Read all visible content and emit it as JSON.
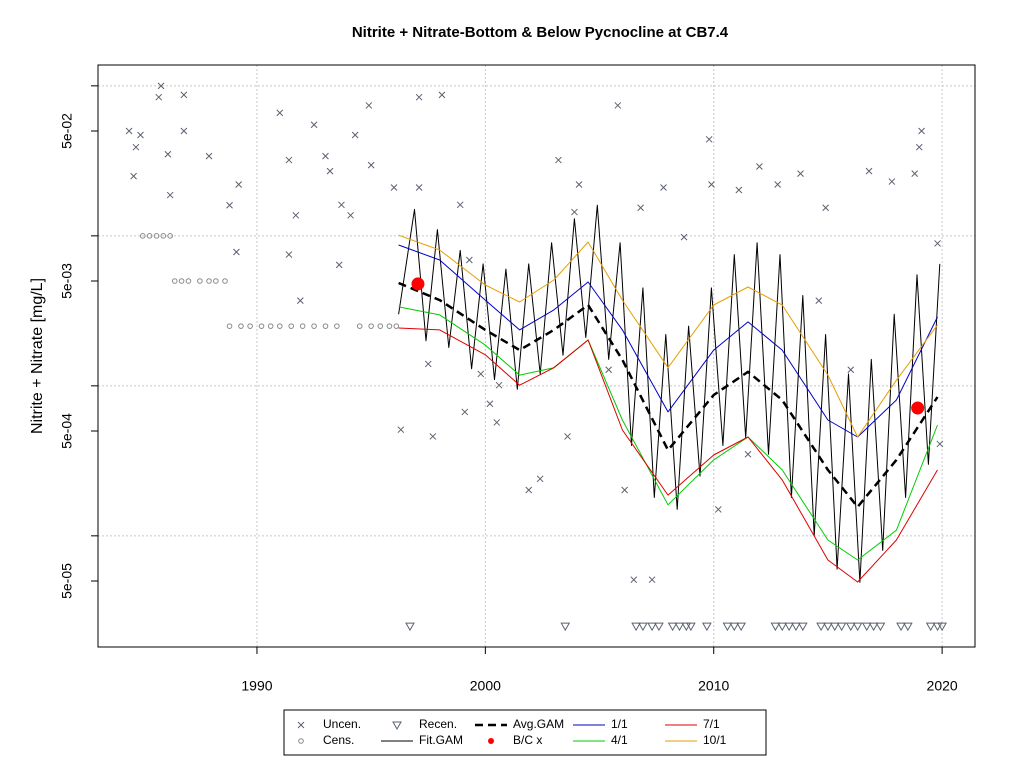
{
  "chart_data": {
    "type": "line",
    "title": "Nitrite + Nitrate-Bottom & Below Pycnocline at CB7.4",
    "y_label": "Nitrite + Nitrate [mg/L]",
    "xlim": [
      1983.04,
      2021.44
    ],
    "xticks": [
      1990,
      2000,
      2010,
      2020
    ],
    "ylim": [
      1.815e-05,
      0.1377
    ],
    "y_log": true,
    "yticks": [
      {
        "value": 0.05,
        "label": "5e-02"
      },
      {
        "value": 0.005,
        "label": "5e-03"
      },
      {
        "value": 0.0005,
        "label": "5e-04"
      },
      {
        "value": 5e-05,
        "label": "5e-05"
      }
    ],
    "ygrid": [
      0.1,
      0.01,
      0.001,
      0.0001
    ],
    "grid": true,
    "legend": "bottom",
    "series": [
      {
        "name": "Uncen.",
        "kind": "points",
        "marker": "x",
        "color": "#5a6270",
        "x": [
          1984.4,
          1984.7,
          1984.9,
          1984.6,
          1985.8,
          1985.7,
          1986.8,
          1986.1,
          1986.2,
          1986.8,
          1987.9,
          1988.8,
          1989.2,
          1989.1,
          1991.0,
          1991.4,
          1991.7,
          1992.5,
          1993.0,
          1993.2,
          1993.7,
          1994.3,
          1994.1,
          1994.9,
          1995.0,
          1993.6,
          1991.4,
          1991.9,
          1996.0,
          1997.1,
          1998.1,
          1997.1,
          1997.5,
          1996.3,
          1997.7,
          1998.9,
          1999.3,
          1999.8,
          1999.1,
          2000.2,
          2000.6,
          2000.5,
          2001.9,
          2002.4,
          2003.2,
          2003.6,
          2004.1,
          2003.9,
          2005.8,
          2005.4,
          2006.1,
          2006.5,
          2007.3,
          2006.8,
          2007.8,
          2008.7,
          2009.8,
          2009.9,
          2010.2,
          2011.1,
          2011.5,
          2012.0,
          2012.8,
          2013.8,
          2014.9,
          2014.6,
          2016.0,
          2016.8,
          2017.8,
          2018.8,
          2019.1,
          2019.0,
          2019.8,
          2019.9
        ],
        "values": [
          0.05,
          0.039,
          0.047,
          0.025,
          0.1,
          0.084,
          0.087,
          0.035,
          0.0187,
          0.05,
          0.034,
          0.016,
          0.022,
          0.0078,
          0.066,
          0.032,
          0.0137,
          0.055,
          0.034,
          0.027,
          0.0161,
          0.047,
          0.0137,
          0.074,
          0.0296,
          0.0064,
          0.0075,
          0.0037,
          0.021,
          0.084,
          0.087,
          0.021,
          0.0014,
          0.00051,
          0.00046,
          0.0161,
          0.0069,
          0.0012,
          0.00067,
          0.00076,
          0.00101,
          0.00057,
          0.000202,
          0.00024,
          0.032,
          0.00046,
          0.022,
          0.0144,
          0.074,
          0.00128,
          0.000202,
          5.1e-05,
          5.1e-05,
          0.0154,
          0.021,
          0.0098,
          0.044,
          0.022,
          0.00015,
          0.0202,
          0.00035,
          0.029,
          0.022,
          0.026,
          0.0154,
          0.0037,
          0.00128,
          0.027,
          0.023,
          0.026,
          0.05,
          0.039,
          0.0089,
          0.00041
        ]
      },
      {
        "name": "Cens.",
        "kind": "points",
        "marker": "o",
        "color": "#8a8a8a",
        "x": [
          1985.0,
          1985.3,
          1985.6,
          1985.9,
          1986.2,
          1986.4,
          1986.7,
          1987.0,
          1987.5,
          1987.9,
          1988.2,
          1988.6,
          1988.8,
          1989.3,
          1989.7,
          1990.2,
          1990.6,
          1991.0,
          1991.5,
          1992.0,
          1992.5,
          1993.0,
          1993.5,
          1994.5,
          1995.0,
          1995.4,
          1995.8,
          1996.1
        ],
        "values": [
          0.01,
          0.01,
          0.01,
          0.01,
          0.01,
          0.005,
          0.005,
          0.005,
          0.005,
          0.005,
          0.005,
          0.005,
          0.0025,
          0.0025,
          0.0025,
          0.0025,
          0.0025,
          0.0025,
          0.0025,
          0.0025,
          0.0025,
          0.0025,
          0.0025,
          0.0025,
          0.0025,
          0.0025,
          0.0025,
          0.0025
        ]
      },
      {
        "name": "Recen.",
        "kind": "points",
        "marker": "v",
        "color": "#5a6270",
        "x": [
          1996.7,
          2003.5,
          2006.6,
          2006.9,
          2007.3,
          2007.6,
          2008.2,
          2008.5,
          2008.8,
          2009.0,
          2009.7,
          2010.6,
          2010.9,
          2011.2,
          2012.7,
          2013.0,
          2013.3,
          2013.6,
          2013.9,
          2014.7,
          2015.0,
          2015.3,
          2015.6,
          2016.0,
          2016.3,
          2016.7,
          2017.0,
          2017.3,
          2018.2,
          2018.5,
          2019.5,
          2019.8,
          2020.0
        ],
        "values": [
          2.5e-05,
          2.5e-05,
          2.5e-05,
          2.5e-05,
          2.5e-05,
          2.5e-05,
          2.5e-05,
          2.5e-05,
          2.5e-05,
          2.5e-05,
          2.5e-05,
          2.5e-05,
          2.5e-05,
          2.5e-05,
          2.5e-05,
          2.5e-05,
          2.5e-05,
          2.5e-05,
          2.5e-05,
          2.5e-05,
          2.5e-05,
          2.5e-05,
          2.5e-05,
          2.5e-05,
          2.5e-05,
          2.5e-05,
          2.5e-05,
          2.5e-05,
          2.5e-05,
          2.5e-05,
          2.5e-05,
          2.5e-05,
          2.5e-05
        ]
      },
      {
        "name": "Fit.GAM",
        "kind": "line",
        "color": "#000000",
        "width": 1,
        "x": [
          1996.2,
          1996.9,
          1997.4,
          1997.9,
          1998.4,
          1998.9,
          1999.4,
          1999.9,
          2000.4,
          2000.9,
          2001.4,
          2001.9,
          2002.4,
          2002.9,
          2003.4,
          2003.9,
          2004.4,
          2004.9,
          2005.4,
          2005.9,
          2006.4,
          2006.9,
          2007.4,
          2007.9,
          2008.4,
          2008.9,
          2009.4,
          2009.9,
          2010.4,
          2010.9,
          2011.4,
          2011.9,
          2012.4,
          2012.9,
          2013.4,
          2013.9,
          2014.4,
          2014.9,
          2015.4,
          2015.9,
          2016.4,
          2016.9,
          2017.4,
          2017.9,
          2018.4,
          2018.9,
          2019.4,
          2019.9
        ],
        "values": [
          0.003,
          0.015,
          0.002,
          0.011,
          0.0018,
          0.008,
          0.0013,
          0.0065,
          0.0011,
          0.006,
          0.00095,
          0.0065,
          0.0012,
          0.009,
          0.0016,
          0.013,
          0.0021,
          0.016,
          0.0015,
          0.009,
          0.0004,
          0.0045,
          0.00018,
          0.0022,
          0.00015,
          0.0025,
          0.00025,
          0.0045,
          0.0004,
          0.0075,
          0.00045,
          0.009,
          0.00035,
          0.0075,
          0.00018,
          0.004,
          0.0001,
          0.0022,
          6e-05,
          0.0012,
          4.9e-05,
          0.0015,
          8e-05,
          0.003,
          0.00018,
          0.0055,
          0.0003,
          0.0065
        ]
      },
      {
        "name": "Avg.GAM",
        "kind": "line",
        "dashed": true,
        "color": "#000000",
        "width": 2.5,
        "x": [
          1996.2,
          1998,
          2000,
          2001.5,
          2003,
          2004.5,
          2006,
          2008,
          2010,
          2011.5,
          2013,
          2015,
          2016.3,
          2018,
          2019.8
        ],
        "values": [
          0.00485,
          0.00373,
          0.00236,
          0.00173,
          0.00236,
          0.00346,
          0.00149,
          0.000373,
          0.000869,
          0.00124,
          0.000805,
          0.000275,
          0.000156,
          0.000321,
          0.000843
        ]
      },
      {
        "name": "B/C x",
        "kind": "points",
        "marker": "dot",
        "color": "#ff0000",
        "x": [
          1997.05,
          2018.93
        ],
        "values": [
          0.00478,
          0.000711
        ]
      },
      {
        "name": "1/1",
        "kind": "line",
        "color": "#0000c8",
        "width": 1,
        "x": [
          1996.2,
          1998,
          2000,
          2001.5,
          2003,
          2004.5,
          2006,
          2008,
          2010,
          2011.5,
          2013,
          2015,
          2016.3,
          2018,
          2019.8
        ],
        "values": [
          0.00869,
          0.0069,
          0.00373,
          0.00236,
          0.00321,
          0.00492,
          0.00236,
          0.00067,
          0.00173,
          0.00267,
          0.00173,
          0.000592,
          0.000456,
          0.000805,
          0.00288
        ]
      },
      {
        "name": "4/1",
        "kind": "line",
        "color": "#00cc00",
        "width": 1,
        "x": [
          1996.2,
          1998,
          2000,
          2001.5,
          2003,
          2004.5,
          2006,
          2008,
          2010,
          2011.5,
          2013,
          2015,
          2016.3,
          2018,
          2019.8
        ],
        "values": [
          0.00336,
          0.00297,
          0.00187,
          0.00118,
          0.00132,
          0.00202,
          0.000592,
          0.000161,
          0.000321,
          0.000456,
          0.000275,
          9.38e-05,
          6.9e-05,
          0.000109,
          0.000548
        ]
      },
      {
        "name": "7/1",
        "kind": "line",
        "color": "#dd0000",
        "width": 1,
        "x": [
          1996.2,
          1998,
          2000,
          2001.5,
          2003,
          2004.5,
          2006,
          2008,
          2010,
          2011.5,
          2013,
          2015,
          2016.3,
          2018,
          2019.8
        ],
        "values": [
          0.00243,
          0.00236,
          0.00161,
          0.00101,
          0.00132,
          0.00202,
          0.000508,
          0.000187,
          0.000346,
          0.000456,
          0.000236,
          6.9e-05,
          4.92e-05,
          9.38e-05,
          0.000275
        ]
      },
      {
        "name": "10/1",
        "kind": "line",
        "color": "#e69f00",
        "width": 1,
        "x": [
          1996.2,
          1998,
          2000,
          2001.5,
          2003,
          2004.5,
          2006,
          2008,
          2010,
          2011.5,
          2013,
          2015,
          2016.3,
          2018,
          2019.8
        ],
        "values": [
          0.0101,
          0.00805,
          0.0047,
          0.00362,
          0.00508,
          0.0091,
          0.00373,
          0.00132,
          0.00346,
          0.00456,
          0.00346,
          0.00118,
          0.000456,
          0.00109,
          0.00255
        ]
      }
    ]
  }
}
